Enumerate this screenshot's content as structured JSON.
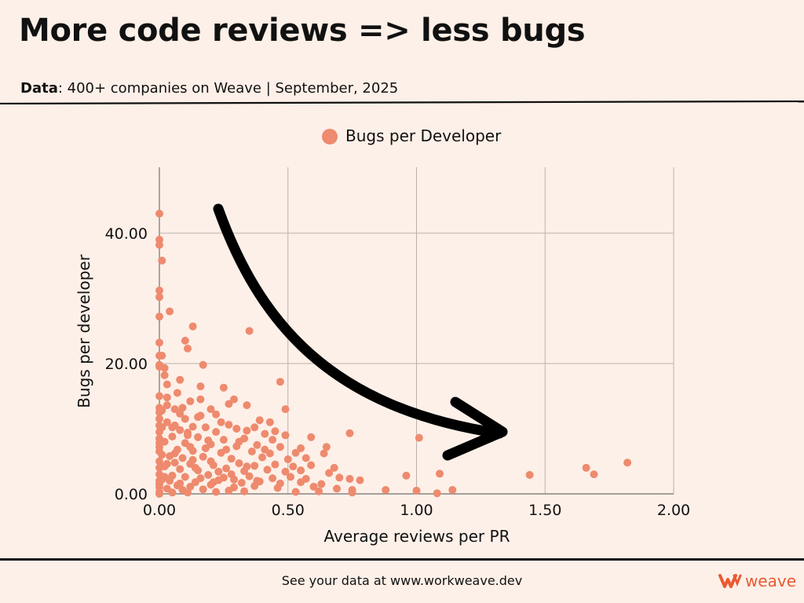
{
  "header": {
    "title": "More code reviews => less bugs",
    "subtitle_bold": "Data",
    "subtitle_rest": ": 400+ companies on Weave | September, 2025"
  },
  "footer": {
    "text": "See your data at www.workweave.dev",
    "logo_text": "weave"
  },
  "colors": {
    "point": "#ee8a6e",
    "background": "#fdf0e8",
    "grid": "#b9b2ad",
    "accent": "#ea5a32"
  },
  "chart_data": {
    "type": "scatter",
    "title": "",
    "xlabel": "Average reviews per PR",
    "ylabel": "Bugs per developer",
    "xlim": [
      0,
      2
    ],
    "ylim": [
      0,
      50
    ],
    "xticks": [
      "0.00",
      "0.50",
      "1.00",
      "1.50",
      "2.00"
    ],
    "yticks": [
      "0.00",
      "20.00",
      "40.00"
    ],
    "grid": true,
    "legend_position": "top-center",
    "annotation": "downward-curved-arrow",
    "series": [
      {
        "name": "Bugs per Developer",
        "points": [
          [
            0.0,
            43.0
          ],
          [
            0.0,
            39.0
          ],
          [
            0.0,
            38.2
          ],
          [
            0.01,
            35.8
          ],
          [
            0.0,
            31.2
          ],
          [
            0.0,
            30.2
          ],
          [
            0.04,
            28.0
          ],
          [
            0.0,
            27.2
          ],
          [
            0.13,
            25.7
          ],
          [
            0.35,
            25.0
          ],
          [
            0.1,
            23.5
          ],
          [
            0.0,
            23.2
          ],
          [
            0.11,
            22.3
          ],
          [
            0.0,
            21.2
          ],
          [
            0.01,
            21.2
          ],
          [
            0.0,
            19.8
          ],
          [
            0.17,
            19.8
          ],
          [
            0.0,
            19.5
          ],
          [
            0.02,
            19.3
          ],
          [
            0.02,
            18.2
          ],
          [
            0.47,
            17.2
          ],
          [
            0.08,
            17.5
          ],
          [
            0.03,
            16.8
          ],
          [
            0.25,
            16.3
          ],
          [
            0.16,
            16.5
          ],
          [
            0.07,
            15.5
          ],
          [
            0.0,
            15.0
          ],
          [
            0.03,
            14.8
          ],
          [
            0.29,
            14.5
          ],
          [
            0.12,
            14.2
          ],
          [
            0.16,
            14.5
          ],
          [
            0.27,
            13.8
          ],
          [
            0.34,
            13.6
          ],
          [
            0.0,
            13.2
          ],
          [
            0.03,
            13.6
          ],
          [
            0.06,
            13.0
          ],
          [
            0.09,
            13.2
          ],
          [
            0.2,
            13.0
          ],
          [
            0.49,
            13.0
          ],
          [
            0.0,
            12.5
          ],
          [
            0.08,
            12.3
          ],
          [
            0.1,
            11.5
          ],
          [
            0.15,
            11.8
          ],
          [
            0.22,
            12.2
          ],
          [
            0.39,
            11.3
          ],
          [
            0.43,
            11.0
          ],
          [
            0.03,
            11.0
          ],
          [
            0.0,
            10.5
          ],
          [
            0.01,
            10.2
          ],
          [
            0.13,
            10.3
          ],
          [
            0.18,
            10.2
          ],
          [
            0.27,
            10.6
          ],
          [
            0.3,
            10.0
          ],
          [
            0.37,
            10.2
          ],
          [
            0.05,
            10.2
          ],
          [
            0.08,
            9.8
          ],
          [
            0.45,
            9.6
          ],
          [
            0.74,
            9.3
          ],
          [
            1.01,
            8.6
          ],
          [
            0.11,
            9.4
          ],
          [
            0.22,
            9.5
          ],
          [
            0.34,
            9.7
          ],
          [
            0.41,
            9.2
          ],
          [
            0.49,
            9.0
          ],
          [
            0.05,
            8.8
          ],
          [
            0.0,
            8.5
          ],
          [
            0.15,
            8.7
          ],
          [
            0.25,
            8.3
          ],
          [
            0.33,
            8.5
          ],
          [
            0.44,
            8.3
          ],
          [
            0.59,
            8.7
          ],
          [
            0.02,
            8.0
          ],
          [
            0.1,
            7.8
          ],
          [
            0.2,
            7.6
          ],
          [
            0.3,
            7.3
          ],
          [
            0.38,
            7.5
          ],
          [
            0.47,
            7.2
          ],
          [
            0.65,
            7.2
          ],
          [
            0.55,
            7.0
          ],
          [
            0.0,
            7.2
          ],
          [
            0.07,
            6.8
          ],
          [
            0.13,
            6.6
          ],
          [
            0.24,
            6.3
          ],
          [
            0.36,
            6.5
          ],
          [
            0.43,
            6.2
          ],
          [
            0.53,
            6.3
          ],
          [
            0.64,
            6.2
          ],
          [
            0.01,
            6.0
          ],
          [
            0.04,
            5.8
          ],
          [
            0.09,
            5.5
          ],
          [
            0.17,
            5.7
          ],
          [
            0.28,
            5.4
          ],
          [
            0.4,
            5.6
          ],
          [
            0.5,
            5.3
          ],
          [
            0.57,
            5.5
          ],
          [
            0.0,
            5.0
          ],
          [
            0.06,
            4.8
          ],
          [
            0.12,
            4.6
          ],
          [
            0.21,
            4.4
          ],
          [
            0.31,
            4.7
          ],
          [
            0.37,
            4.3
          ],
          [
            0.45,
            4.5
          ],
          [
            0.52,
            4.2
          ],
          [
            0.59,
            4.4
          ],
          [
            0.68,
            4.0
          ],
          [
            0.02,
            4.2
          ],
          [
            0.08,
            3.8
          ],
          [
            0.15,
            3.6
          ],
          [
            0.26,
            3.9
          ],
          [
            0.33,
            3.5
          ],
          [
            0.42,
            3.7
          ],
          [
            0.49,
            3.4
          ],
          [
            0.55,
            3.6
          ],
          [
            0.66,
            3.2
          ],
          [
            1.66,
            4.0
          ],
          [
            1.82,
            4.8
          ],
          [
            1.69,
            3.0
          ],
          [
            1.44,
            2.9
          ],
          [
            1.09,
            3.1
          ],
          [
            0.96,
            2.8
          ],
          [
            0.0,
            3.0
          ],
          [
            0.05,
            2.8
          ],
          [
            0.1,
            2.6
          ],
          [
            0.19,
            2.9
          ],
          [
            0.25,
            2.5
          ],
          [
            0.35,
            2.7
          ],
          [
            0.44,
            2.4
          ],
          [
            0.51,
            2.6
          ],
          [
            0.57,
            2.3
          ],
          [
            0.7,
            2.5
          ],
          [
            0.74,
            2.3
          ],
          [
            0.78,
            2.1
          ],
          [
            0.01,
            2.2
          ],
          [
            0.04,
            2.0
          ],
          [
            0.14,
            1.8
          ],
          [
            0.23,
            2.1
          ],
          [
            0.32,
            1.7
          ],
          [
            0.39,
            1.9
          ],
          [
            0.47,
            1.6
          ],
          [
            0.55,
            1.8
          ],
          [
            0.63,
            1.5
          ],
          [
            0.0,
            1.5
          ],
          [
            0.07,
            1.3
          ],
          [
            0.12,
            1.1
          ],
          [
            0.2,
            1.4
          ],
          [
            0.29,
            1.0
          ],
          [
            0.37,
            1.2
          ],
          [
            0.46,
            0.9
          ],
          [
            0.6,
            1.1
          ],
          [
            0.69,
            0.8
          ],
          [
            0.75,
            0.6
          ],
          [
            0.88,
            0.6
          ],
          [
            1.0,
            0.5
          ],
          [
            1.14,
            0.6
          ],
          [
            0.03,
            0.8
          ],
          [
            0.09,
            0.6
          ],
          [
            0.17,
            0.7
          ],
          [
            0.27,
            0.5
          ],
          [
            0.33,
            0.4
          ],
          [
            0.53,
            0.3
          ],
          [
            0.62,
            0.4
          ],
          [
            0.0,
            0.3
          ],
          [
            0.05,
            0.2
          ],
          [
            0.11,
            0.2
          ],
          [
            0.22,
            0.3
          ],
          [
            1.08,
            0.1
          ],
          [
            0.75,
            0.2
          ],
          [
            0.0,
            0.0
          ],
          [
            0.02,
            2.6
          ],
          [
            0.06,
            6.2
          ],
          [
            0.11,
            9.0
          ],
          [
            0.14,
            4.0
          ],
          [
            0.18,
            7.0
          ],
          [
            0.21,
            1.8
          ],
          [
            0.24,
            11.0
          ],
          [
            0.28,
            3.0
          ],
          [
            0.31,
            8.0
          ],
          [
            0.03,
            4.6
          ],
          [
            0.08,
            1.6
          ],
          [
            0.13,
            5.2
          ],
          [
            0.16,
            2.4
          ],
          [
            0.19,
            8.2
          ],
          [
            0.26,
            6.8
          ],
          [
            0.29,
            2.2
          ],
          [
            0.34,
            4.2
          ],
          [
            0.38,
            2.0
          ],
          [
            0.41,
            6.8
          ],
          [
            0.06,
            10.5
          ],
          [
            0.12,
            7.2
          ],
          [
            0.16,
            12.0
          ],
          [
            0.2,
            5.0
          ],
          [
            0.23,
            3.4
          ],
          [
            0.0,
            11.5
          ],
          [
            0.0,
            9.5
          ],
          [
            0.0,
            7.8
          ],
          [
            0.0,
            6.5
          ],
          [
            0.0,
            4.0
          ],
          [
            0.0,
            2.0
          ],
          [
            0.0,
            1.0
          ],
          [
            0.01,
            12.8
          ]
        ]
      }
    ]
  }
}
